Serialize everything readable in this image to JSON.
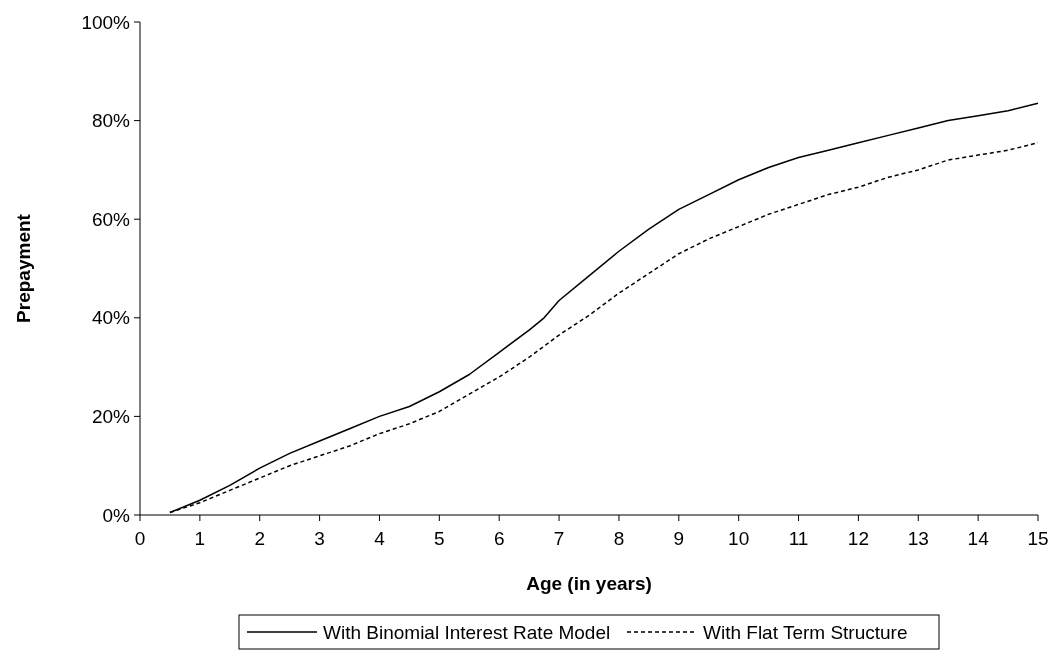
{
  "chart_data": {
    "type": "line",
    "xlabel": "Age (in years)",
    "ylabel": "Prepayment",
    "xlim": [
      0,
      15
    ],
    "xticks": [
      0,
      1,
      2,
      3,
      4,
      5,
      6,
      7,
      8,
      9,
      10,
      11,
      12,
      13,
      14,
      15
    ],
    "ylim": [
      0,
      100
    ],
    "yticks": [
      {
        "value": 0,
        "label": "0%"
      },
      {
        "value": 20,
        "label": "20%"
      },
      {
        "value": 40,
        "label": "40%"
      },
      {
        "value": 60,
        "label": "60%"
      },
      {
        "value": 80,
        "label": "80%"
      },
      {
        "value": 100,
        "label": "100%"
      }
    ],
    "grid": false,
    "legend": "bottom",
    "marker": "none",
    "series": [
      {
        "name": "With Binomial Interest Rate Model",
        "color": "#000000",
        "line_style": "solid",
        "x": [
          0.5,
          1,
          1.5,
          2,
          2.5,
          3,
          3.5,
          4,
          4.5,
          5,
          5.5,
          6,
          6.5,
          6.75,
          7,
          7.5,
          8,
          8.5,
          9,
          9.5,
          10,
          10.5,
          11,
          11.5,
          12,
          12.5,
          13,
          13.5,
          14,
          14.5,
          15
        ],
        "values": [
          0.5,
          3,
          6,
          9.5,
          12.5,
          15,
          17.5,
          20,
          22,
          25,
          28.5,
          33,
          37.5,
          40,
          43.5,
          48.5,
          53.5,
          58,
          62,
          65,
          68,
          70.5,
          72.5,
          74,
          75.5,
          77,
          78.5,
          80,
          81,
          82,
          83.5
        ]
      },
      {
        "name": "With Flat Term Structure",
        "color": "#000000",
        "line_style": "dashed",
        "x": [
          0.5,
          1,
          1.5,
          2,
          2.5,
          3,
          3.5,
          4,
          4.5,
          5,
          5.5,
          6,
          6.5,
          7,
          7.5,
          8,
          8.5,
          9,
          9.5,
          10,
          10.5,
          11,
          11.5,
          12,
          12.5,
          13,
          13.5,
          14,
          14.5,
          15
        ],
        "values": [
          0.5,
          2.5,
          5,
          7.5,
          10,
          12,
          14,
          16.5,
          18.5,
          21,
          24.5,
          28,
          32,
          36.5,
          40.5,
          45,
          49,
          53,
          56,
          58.5,
          61,
          63,
          65,
          66.5,
          68.5,
          70,
          72,
          73,
          74,
          75.5
        ]
      }
    ]
  }
}
